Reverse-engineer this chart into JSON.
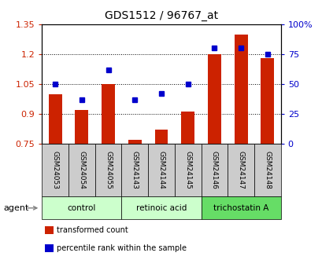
{
  "title": "GDS1512 / 96767_at",
  "categories": [
    "GSM24053",
    "GSM24054",
    "GSM24055",
    "GSM24143",
    "GSM24144",
    "GSM24145",
    "GSM24146",
    "GSM24147",
    "GSM24148"
  ],
  "red_values": [
    1.0,
    0.92,
    1.05,
    0.77,
    0.82,
    0.91,
    1.2,
    1.3,
    1.18
  ],
  "blue_values": [
    50,
    37,
    62,
    37,
    42,
    50,
    80,
    80,
    75
  ],
  "ylim_left": [
    0.75,
    1.35
  ],
  "ylim_right": [
    0,
    100
  ],
  "yticks_left": [
    0.75,
    0.9,
    1.05,
    1.2,
    1.35
  ],
  "yticks_right": [
    0,
    25,
    50,
    75,
    100
  ],
  "ytick_labels_left": [
    "0.75",
    "0.9",
    "1.05",
    "1.2",
    "1.35"
  ],
  "ytick_labels_right": [
    "0",
    "25",
    "50",
    "75",
    "100%"
  ],
  "group_info": [
    {
      "label": "control",
      "start": 0,
      "end": 2,
      "color": "#ccffcc"
    },
    {
      "label": "retinoic acid",
      "start": 3,
      "end": 5,
      "color": "#ccffcc"
    },
    {
      "label": "trichostatin A",
      "start": 6,
      "end": 8,
      "color": "#66dd66"
    }
  ],
  "group_label": "agent",
  "bar_color": "#cc2200",
  "dot_color": "#0000cc",
  "bar_width": 0.5,
  "gsm_bg_color": "#cccccc",
  "legend": [
    {
      "color": "#cc2200",
      "label": "transformed count"
    },
    {
      "color": "#0000cc",
      "label": "percentile rank within the sample"
    }
  ]
}
